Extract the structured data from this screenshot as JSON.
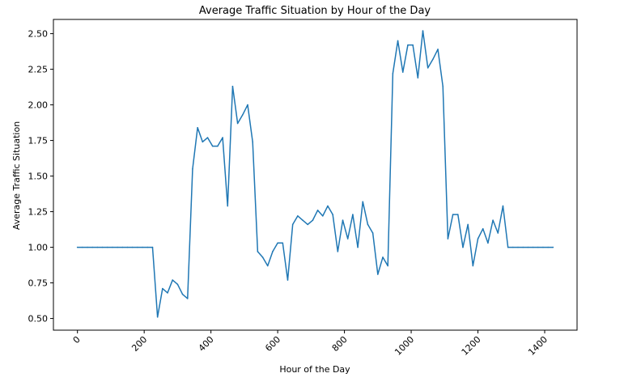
{
  "chart_data": {
    "type": "line",
    "title": "Average Traffic Situation by Hour of the Day",
    "xlabel": "Hour of the Day",
    "ylabel": "Average Traffic Situation",
    "xlim": [
      -72,
      1497
    ],
    "ylim": [
      0.418,
      2.6
    ],
    "x_ticks": [
      0,
      200,
      400,
      600,
      800,
      1000,
      1200,
      1400
    ],
    "x_tick_labels": [
      "0",
      "200",
      "400",
      "600",
      "800",
      "1000",
      "1200",
      "1400"
    ],
    "x_tick_rotation": 45,
    "y_ticks": [
      0.5,
      0.75,
      1.0,
      1.25,
      1.5,
      1.75,
      2.0,
      2.25,
      2.5
    ],
    "y_tick_labels": [
      "0.50",
      "0.75",
      "1.00",
      "1.25",
      "1.50",
      "1.75",
      "2.00",
      "2.25",
      "2.50"
    ],
    "grid": false,
    "line_color": "#1f77b4",
    "series": [
      {
        "x": [
          0,
          15,
          30,
          45,
          60,
          75,
          90,
          105,
          120,
          135,
          150,
          165,
          180,
          195,
          210,
          225,
          240,
          255,
          270,
          285,
          300,
          315,
          330,
          345,
          360,
          375,
          390,
          405,
          420,
          435,
          450,
          465,
          480,
          495,
          510,
          525,
          540,
          555,
          570,
          585,
          600,
          615,
          630,
          645,
          660,
          675,
          690,
          705,
          720,
          735,
          750,
          765,
          780,
          795,
          810,
          825,
          840,
          855,
          870,
          885,
          900,
          915,
          930,
          945,
          960,
          975,
          990,
          1005,
          1020,
          1035,
          1050,
          1065,
          1080,
          1095,
          1110,
          1125,
          1140,
          1155,
          1170,
          1185,
          1200,
          1215,
          1230,
          1245,
          1260,
          1275,
          1290,
          1305,
          1320,
          1335,
          1350,
          1365,
          1380,
          1395,
          1410,
          1425
        ],
        "values": [
          1.0,
          1.0,
          1.0,
          1.0,
          1.0,
          1.0,
          1.0,
          1.0,
          1.0,
          1.0,
          1.0,
          1.0,
          1.0,
          1.0,
          1.0,
          1.0,
          0.51,
          0.71,
          0.68,
          0.77,
          0.74,
          0.67,
          0.64,
          1.55,
          1.84,
          1.74,
          1.77,
          1.71,
          1.71,
          1.77,
          1.29,
          2.13,
          1.87,
          1.93,
          2.0,
          1.74,
          0.97,
          0.93,
          0.87,
          0.97,
          1.03,
          1.03,
          0.77,
          1.16,
          1.22,
          1.19,
          1.16,
          1.19,
          1.26,
          1.22,
          1.29,
          1.23,
          0.97,
          1.19,
          1.06,
          1.23,
          1.0,
          1.32,
          1.16,
          1.1,
          0.81,
          0.93,
          0.87,
          2.22,
          2.45,
          2.23,
          2.42,
          2.42,
          2.19,
          2.52,
          2.26,
          2.32,
          2.39,
          2.13,
          1.06,
          1.23,
          1.23,
          1.0,
          1.16,
          0.87,
          1.06,
          1.13,
          1.03,
          1.19,
          1.1,
          1.29,
          1.0,
          1.0,
          1.0,
          1.0,
          1.0,
          1.0,
          1.0,
          1.0,
          1.0,
          1.0
        ]
      }
    ]
  }
}
